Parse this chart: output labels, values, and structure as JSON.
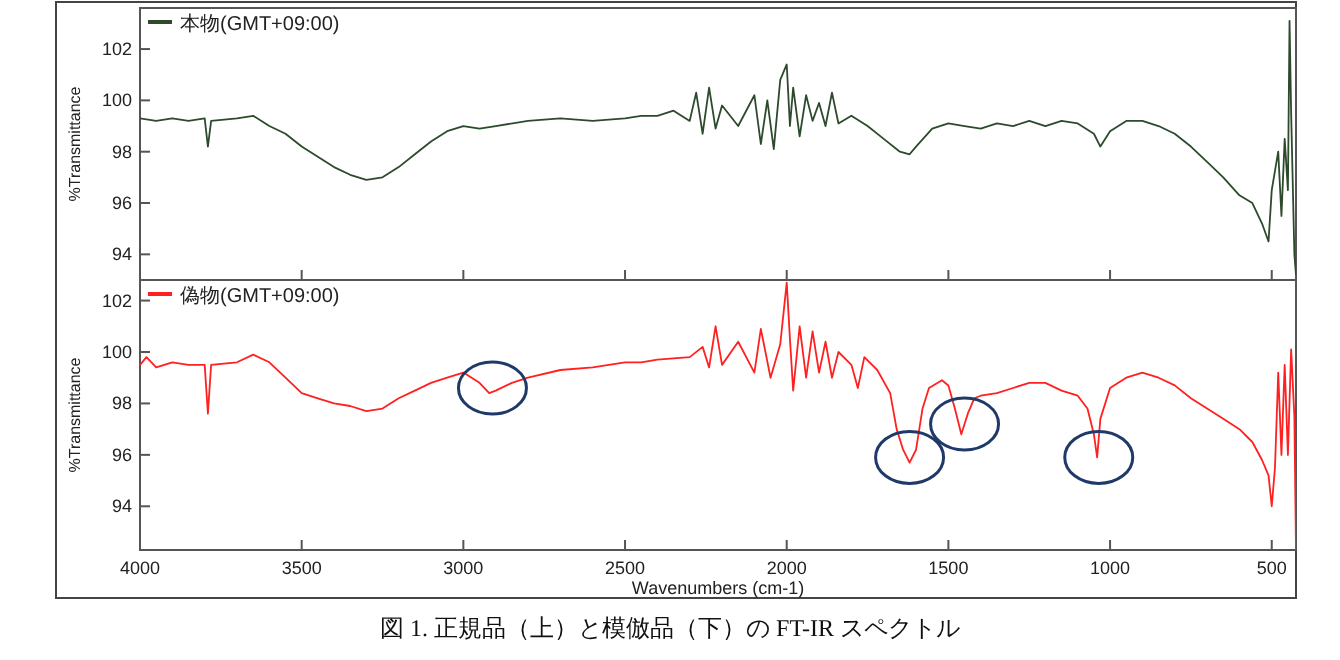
{
  "chart_data": [
    {
      "type": "line",
      "ylabel": "%Transmittance",
      "xlim": [
        4000,
        425
      ],
      "ylim": [
        93,
        103.6
      ],
      "tick_labels": "y",
      "legend": "top left",
      "xticks": [
        4000,
        3500,
        3000,
        2500,
        2000,
        1500,
        1000,
        500
      ],
      "yticks": [
        94,
        96,
        98,
        100,
        102
      ],
      "series": [
        {
          "name": "本物(GMT+09:00)",
          "color": "#2d4a2d",
          "x": [
            4000,
            3950,
            3900,
            3850,
            3800,
            3790,
            3780,
            3700,
            3650,
            3600,
            3550,
            3500,
            3450,
            3400,
            3350,
            3300,
            3250,
            3200,
            3150,
            3100,
            3050,
            3000,
            2950,
            2900,
            2800,
            2700,
            2600,
            2500,
            2450,
            2400,
            2350,
            2300,
            2280,
            2260,
            2240,
            2220,
            2200,
            2150,
            2100,
            2080,
            2060,
            2040,
            2020,
            2000,
            1990,
            1980,
            1960,
            1940,
            1920,
            1900,
            1880,
            1860,
            1840,
            1800,
            1750,
            1700,
            1650,
            1620,
            1600,
            1550,
            1500,
            1450,
            1400,
            1350,
            1300,
            1250,
            1200,
            1150,
            1100,
            1050,
            1030,
            1000,
            950,
            900,
            850,
            800,
            750,
            700,
            650,
            600,
            560,
            530,
            510,
            500,
            480,
            470,
            460,
            450,
            445,
            440,
            430,
            425
          ],
          "values": [
            99.3,
            99.2,
            99.3,
            99.2,
            99.3,
            98.2,
            99.2,
            99.3,
            99.4,
            99.0,
            98.7,
            98.2,
            97.8,
            97.4,
            97.1,
            96.9,
            97.0,
            97.4,
            97.9,
            98.4,
            98.8,
            99.0,
            98.9,
            99.0,
            99.2,
            99.3,
            99.2,
            99.3,
            99.4,
            99.4,
            99.6,
            99.2,
            100.3,
            98.7,
            100.5,
            98.9,
            99.8,
            99.0,
            100.2,
            98.3,
            100.0,
            98.1,
            100.8,
            101.4,
            99.0,
            100.5,
            98.6,
            100.2,
            99.2,
            99.9,
            99.0,
            100.3,
            99.1,
            99.4,
            99.0,
            98.5,
            98.0,
            97.9,
            98.2,
            98.9,
            99.1,
            99.0,
            98.9,
            99.1,
            99.0,
            99.2,
            99.0,
            99.2,
            99.1,
            98.7,
            98.2,
            98.8,
            99.2,
            99.2,
            99.0,
            98.7,
            98.2,
            97.6,
            97.0,
            96.3,
            96.0,
            95.2,
            94.5,
            96.5,
            98.0,
            95.5,
            98.5,
            96.5,
            103.1,
            99.5,
            94.0,
            93.2
          ]
        }
      ]
    },
    {
      "type": "line",
      "ylabel": "%Transmittance",
      "xlabel": "Wavenumbers (cm-1)",
      "xlim": [
        4000,
        425
      ],
      "ylim": [
        92.3,
        102.8
      ],
      "legend": "top left",
      "xticks": [
        4000,
        3500,
        3000,
        2500,
        2000,
        1500,
        1000,
        500
      ],
      "yticks": [
        94,
        96,
        98,
        100,
        102
      ],
      "annotations": [
        "図 1. 正規品（上）と模倣品（下）の FT-IR スペクトル"
      ],
      "series": [
        {
          "name": "偽物(GMT+09:00)",
          "color": "#ff2020",
          "x": [
            4000,
            3980,
            3950,
            3900,
            3850,
            3800,
            3790,
            3780,
            3700,
            3650,
            3600,
            3550,
            3500,
            3450,
            3400,
            3350,
            3300,
            3250,
            3200,
            3150,
            3100,
            3050,
            3000,
            2950,
            2920,
            2900,
            2850,
            2800,
            2700,
            2600,
            2500,
            2450,
            2400,
            2300,
            2260,
            2240,
            2220,
            2200,
            2150,
            2100,
            2080,
            2050,
            2020,
            2000,
            1990,
            1980,
            1960,
            1940,
            1920,
            1900,
            1880,
            1860,
            1840,
            1800,
            1780,
            1760,
            1720,
            1680,
            1660,
            1640,
            1620,
            1600,
            1580,
            1560,
            1520,
            1500,
            1480,
            1460,
            1440,
            1420,
            1400,
            1350,
            1300,
            1250,
            1200,
            1150,
            1100,
            1070,
            1050,
            1040,
            1030,
            1000,
            950,
            900,
            850,
            800,
            750,
            700,
            650,
            600,
            560,
            530,
            510,
            500,
            490,
            480,
            470,
            460,
            450,
            440,
            430,
            425
          ],
          "values": [
            99.5,
            99.8,
            99.4,
            99.6,
            99.5,
            99.5,
            97.6,
            99.5,
            99.6,
            99.9,
            99.6,
            99.0,
            98.4,
            98.2,
            98.0,
            97.9,
            97.7,
            97.8,
            98.2,
            98.5,
            98.8,
            99.0,
            99.2,
            98.8,
            98.4,
            98.5,
            98.8,
            99.0,
            99.3,
            99.4,
            99.6,
            99.6,
            99.7,
            99.8,
            100.2,
            99.4,
            101.0,
            99.5,
            100.4,
            99.2,
            100.9,
            99.0,
            100.3,
            102.7,
            100.5,
            98.5,
            101.0,
            99.0,
            100.8,
            99.2,
            100.4,
            99.0,
            100.0,
            99.5,
            98.6,
            99.8,
            99.3,
            98.4,
            97.0,
            96.2,
            95.7,
            96.2,
            97.8,
            98.6,
            98.9,
            98.7,
            97.8,
            96.8,
            97.6,
            98.2,
            98.3,
            98.4,
            98.6,
            98.8,
            98.8,
            98.5,
            98.3,
            97.8,
            96.8,
            95.9,
            97.4,
            98.6,
            99.0,
            99.2,
            99.0,
            98.7,
            98.2,
            97.8,
            97.4,
            97.0,
            96.5,
            95.8,
            95.2,
            94.0,
            95.5,
            99.2,
            96.0,
            99.5,
            96.0,
            100.1,
            97.5,
            92.3
          ]
        }
      ]
    }
  ]
}
